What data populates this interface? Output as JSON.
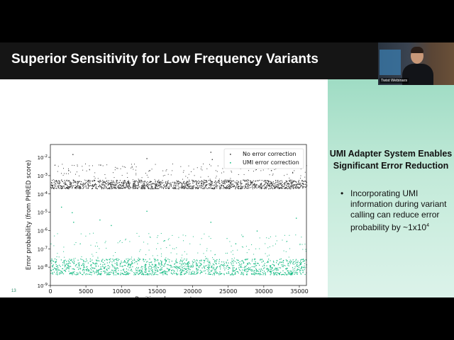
{
  "slide": {
    "title": "Superior Sensitivity for Low Frequency Variants",
    "slide_number": "13",
    "side_heading": "UMI Adapter System Enables Significant Error Reduction",
    "bullet_text": "Incorporating UMI information during variant calling can reduce error probability by ~1x10",
    "bullet_exponent": "4"
  },
  "video": {
    "label": "Twist Webinars"
  },
  "colors": {
    "title_bar": "#151515",
    "series_no_correction": "#404040",
    "series_umi": "#1abc85",
    "side_panel": "#b5e5d0"
  },
  "chart_data": {
    "type": "scatter",
    "xlabel": "Position along capture space",
    "ylabel": "Error probability (from PHRED score)",
    "xlim": [
      0,
      36000
    ],
    "ylim": [
      1e-09,
      0.05
    ],
    "yscale": "log",
    "x_ticks": [
      "0",
      "5000",
      "10000",
      "15000",
      "20000",
      "25000",
      "30000",
      "35000"
    ],
    "y_ticks": [
      {
        "base": "10",
        "exp": "-9"
      },
      {
        "base": "10",
        "exp": "-8"
      },
      {
        "base": "10",
        "exp": "-7"
      },
      {
        "base": "10",
        "exp": "-6"
      },
      {
        "base": "10",
        "exp": "-5"
      },
      {
        "base": "10",
        "exp": "-4"
      },
      {
        "base": "10",
        "exp": "-3"
      },
      {
        "base": "10",
        "exp": "-2"
      }
    ],
    "legend_position": "top-right",
    "series": [
      {
        "name": "No error correction",
        "typical_min": 0.0002,
        "typical_max": 0.0006,
        "outliers": [
          [
            2500,
            0.002
          ],
          [
            3100,
            0.015
          ],
          [
            7000,
            0.004
          ],
          [
            13500,
            0.009
          ],
          [
            13900,
            0.002
          ],
          [
            22500,
            0.02
          ],
          [
            22700,
            0.008
          ],
          [
            27500,
            0.003
          ],
          [
            31000,
            0.002
          ],
          [
            34000,
            0.0015
          ]
        ]
      },
      {
        "name": "UMI error correction",
        "typical_min": 4e-09,
        "typical_max": 3e-08,
        "outliers": [
          [
            1500,
            2e-05
          ],
          [
            3000,
            1e-05
          ],
          [
            3200,
            3e-06
          ],
          [
            6900,
            4e-06
          ],
          [
            8500,
            2e-06
          ],
          [
            13500,
            1.2e-05
          ],
          [
            16000,
            3e-07
          ],
          [
            22500,
            3e-06
          ],
          [
            26000,
            2e-07
          ],
          [
            27000,
            5e-07
          ],
          [
            29000,
            1e-06
          ],
          [
            34500,
            5e-06
          ]
        ]
      }
    ]
  }
}
